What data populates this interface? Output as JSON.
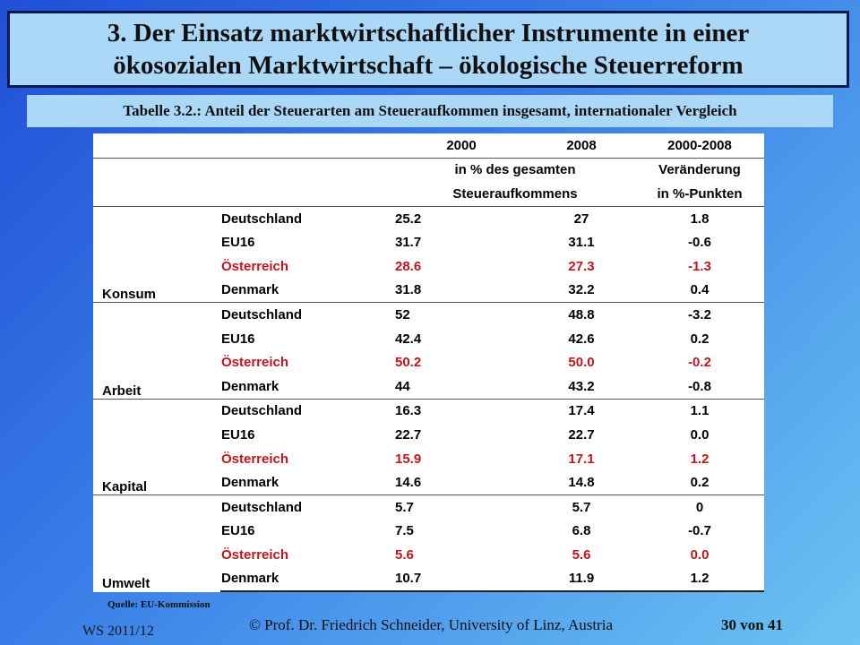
{
  "title": {
    "line1": "3. Der Einsatz marktwirtschaftlicher Instrumente in einer",
    "line2": "ökosozialen Marktwirtschaft – ökologische Steuerreform"
  },
  "subtitle": "Tabelle 3.2.:  Anteil der Steuerarten am Steueraufkommen insgesamt, internationaler Vergleich",
  "table": {
    "header": {
      "col2000": "2000",
      "col2008": "2008",
      "colChange": "2000-2008",
      "share_line1": "in % des gesamten",
      "share_line2": "Steueraufkommens",
      "change_line1": "Veränderung",
      "change_line2": "in %-Punkten"
    },
    "groups": [
      {
        "name": "Konsum",
        "rows": [
          {
            "country": "Deutschland",
            "v2000": "25.2",
            "v2008": "27",
            "change": "1.8"
          },
          {
            "country": "EU16",
            "v2000": "31.7",
            "v2008": "31.1",
            "change": "-0.6"
          },
          {
            "country": "Österreich",
            "v2000": "28.6",
            "v2008": "27.3",
            "change": "-1.3"
          },
          {
            "country": "Denmark",
            "v2000": "31.8",
            "v2008": "32.2",
            "change": "0.4"
          }
        ]
      },
      {
        "name": "Arbeit",
        "rows": [
          {
            "country": "Deutschland",
            "v2000": "52",
            "v2008": "48.8",
            "change": "-3.2"
          },
          {
            "country": "EU16",
            "v2000": "42.4",
            "v2008": "42.6",
            "change": "0.2"
          },
          {
            "country": "Österreich",
            "v2000": "50.2",
            "v2008": "50.0",
            "change": "-0.2"
          },
          {
            "country": "Denmark",
            "v2000": "44",
            "v2008": "43.2",
            "change": "-0.8"
          }
        ]
      },
      {
        "name": "Kapital",
        "rows": [
          {
            "country": "Deutschland",
            "v2000": "16.3",
            "v2008": "17.4",
            "change": "1.1"
          },
          {
            "country": "EU16",
            "v2000": "22.7",
            "v2008": "22.7",
            "change": "0.0"
          },
          {
            "country": "Österreich",
            "v2000": "15.9",
            "v2008": "17.1",
            "change": "1.2"
          },
          {
            "country": "Denmark",
            "v2000": "14.6",
            "v2008": "14.8",
            "change": "0.2"
          }
        ]
      },
      {
        "name": "Umwelt",
        "rows": [
          {
            "country": "Deutschland",
            "v2000": "5.7",
            "v2008": "5.7",
            "change": "0"
          },
          {
            "country": "EU16",
            "v2000": "7.5",
            "v2008": "6.8",
            "change": "-0.7"
          },
          {
            "country": "Österreich",
            "v2000": "5.6",
            "v2008": "5.6",
            "change": "0.0"
          },
          {
            "country": "Denmark",
            "v2000": "10.7",
            "v2008": "11.9",
            "change": "1.2"
          }
        ]
      }
    ],
    "highlight_country": "Österreich",
    "highlight_color": "#c0161b"
  },
  "source": "Quelle: EU-Kommission",
  "footer": {
    "semester": "WS 2011/12",
    "copyright": "© Prof. Dr. Friedrich Schneider, University of Linz, Austria",
    "page": "30 von 41"
  },
  "colors": {
    "title_bg": "#abd8f7",
    "title_border": "#0d1a4d",
    "bg_start": "#1f4fd6",
    "bg_end": "#6cc4f2"
  }
}
